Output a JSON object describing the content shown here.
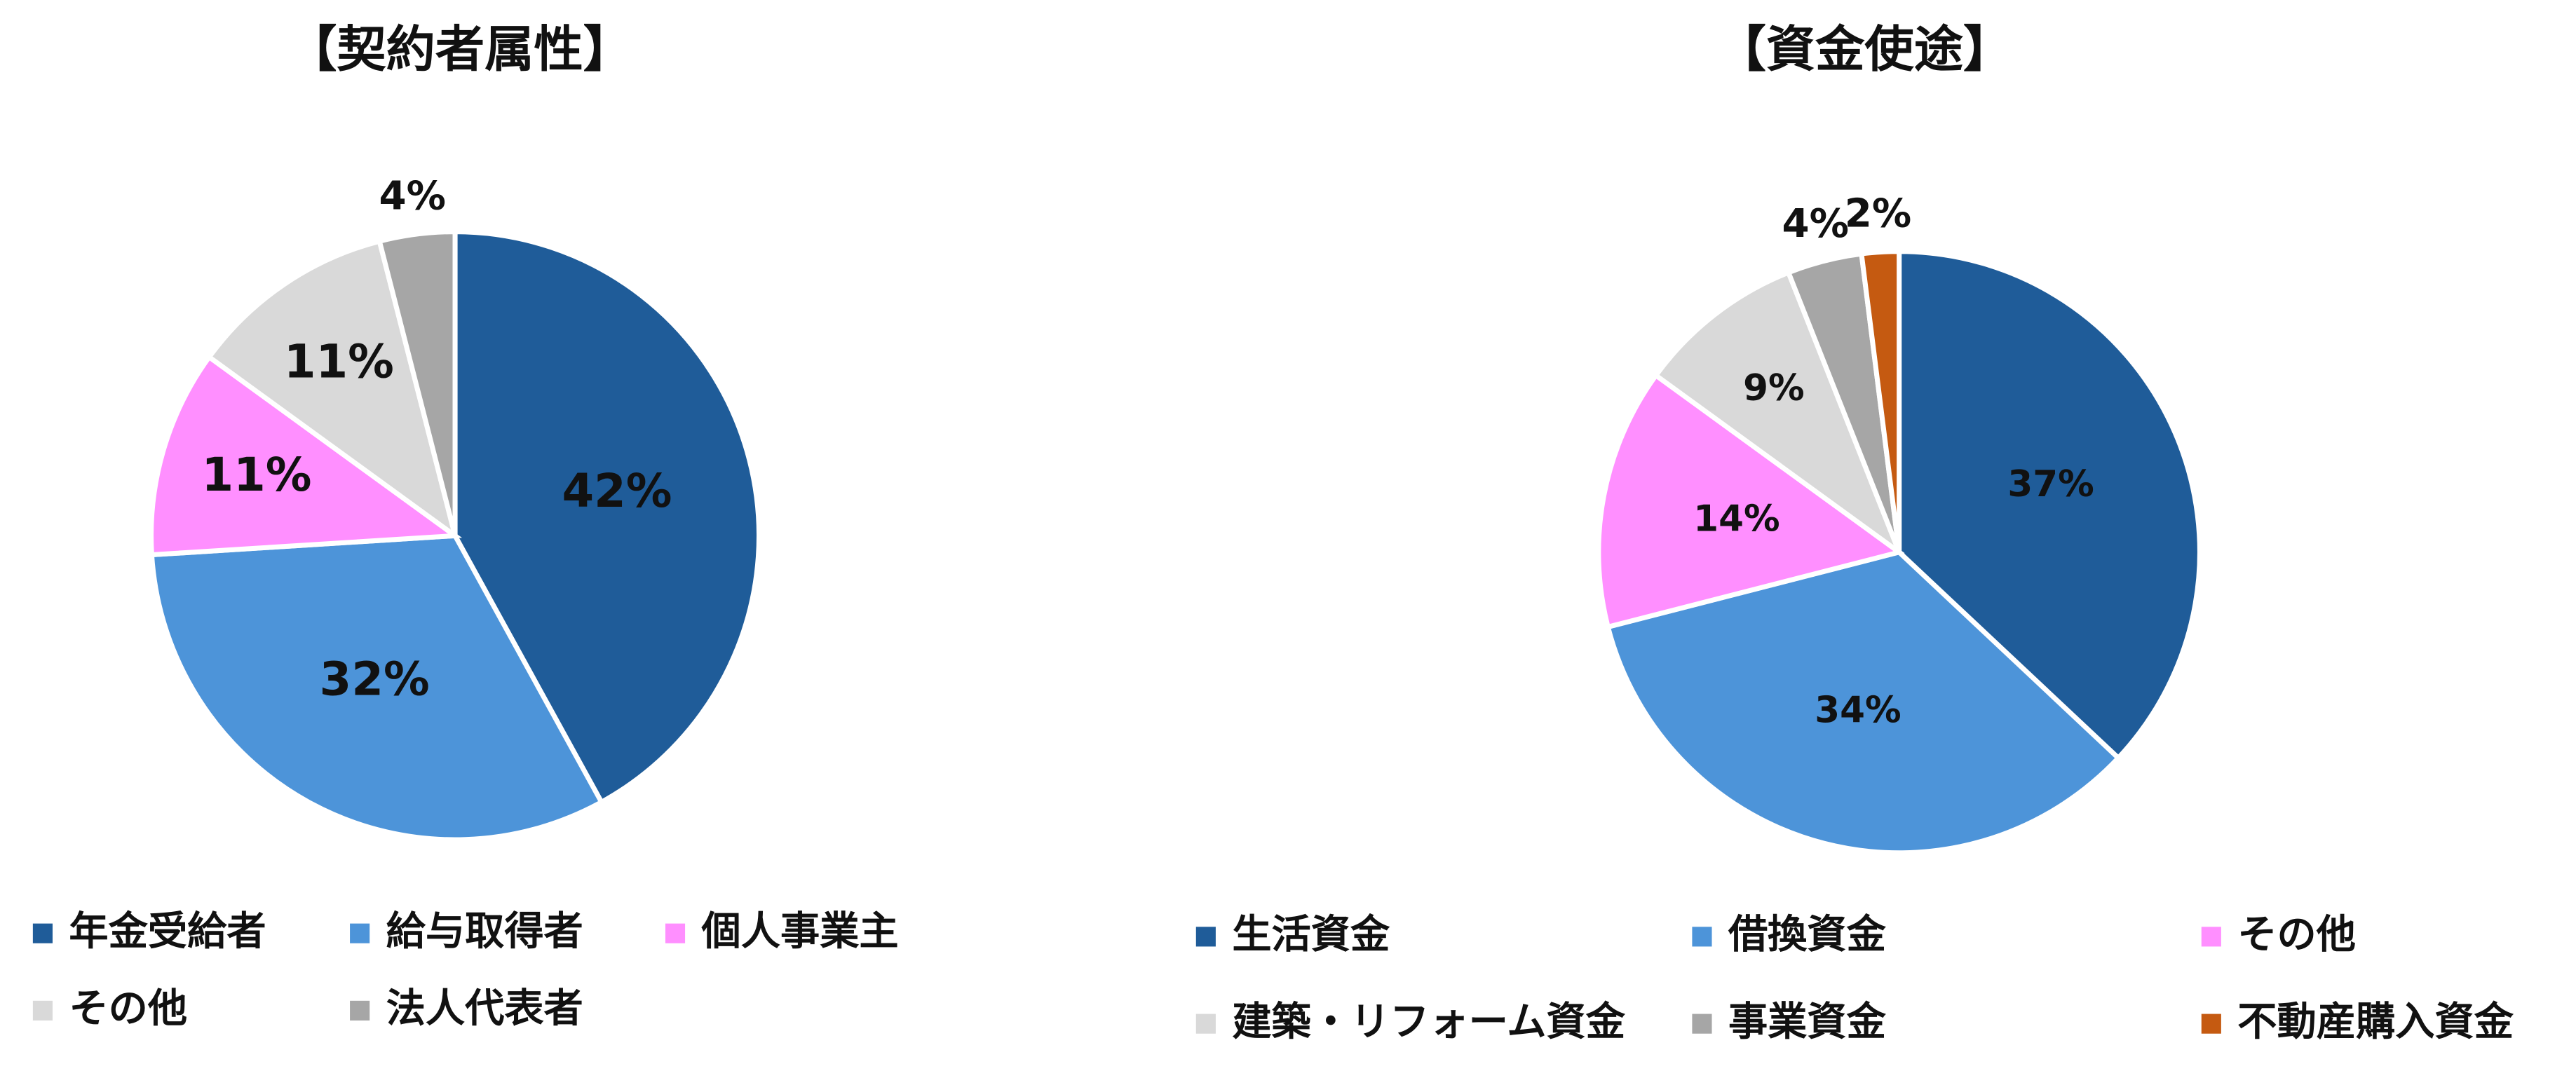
{
  "chart_data": [
    {
      "type": "pie",
      "title": "【契約者属性】",
      "categories": [
        "年金受給者",
        "給与取得者",
        "個人事業主",
        "その他",
        "法人代表者"
      ],
      "values": [
        42,
        32,
        11,
        11,
        4
      ],
      "value_labels": [
        "42%",
        "32%",
        "11%",
        "11%",
        "4%"
      ],
      "colors": [
        "#1f5c99",
        "#4d94d9",
        "#ff8fff",
        "#d9d9d9",
        "#a6a6a6"
      ]
    },
    {
      "type": "pie",
      "title": "【資金使途】",
      "categories": [
        "生活資金",
        "借換資金",
        "その他",
        "建築・リフォーム資金",
        "事業資金",
        "不動産購入資金"
      ],
      "values": [
        37,
        34,
        14,
        9,
        4,
        2
      ],
      "value_labels": [
        "37%",
        "34%",
        "14%",
        "9%",
        "4%",
        "2%"
      ],
      "colors": [
        "#1f5c99",
        "#4d94d9",
        "#ff8fff",
        "#d9d9d9",
        "#a6a6a6",
        "#c55a11"
      ]
    }
  ]
}
